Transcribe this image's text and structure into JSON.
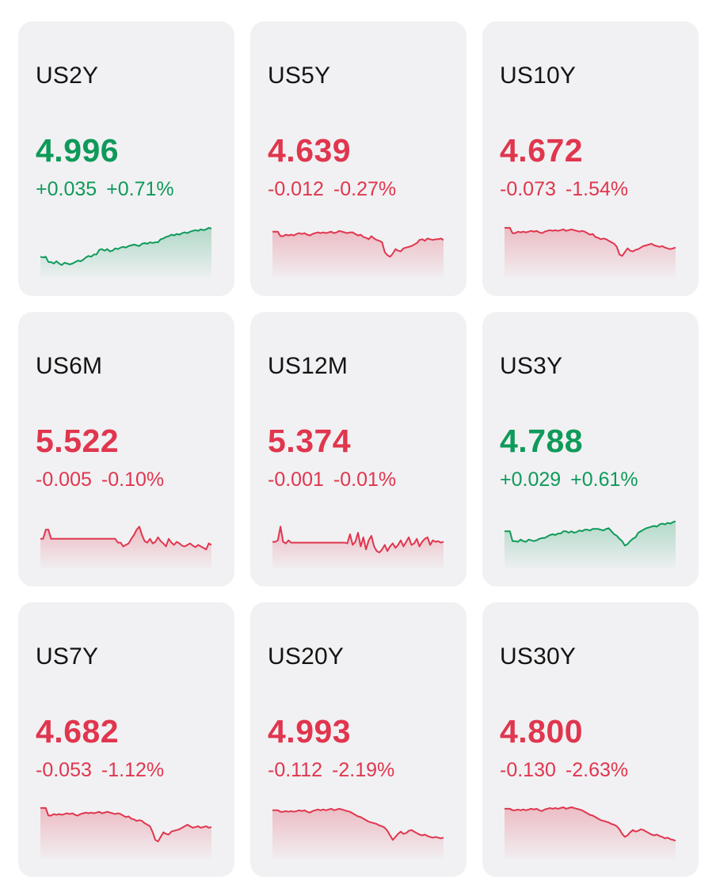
{
  "colors": {
    "up": "#0f9a5a",
    "down": "#e0364e",
    "card_bg": "#f1f1f3"
  },
  "tickers": [
    {
      "symbol": "US2Y",
      "price": "4.996",
      "change": "+0.035",
      "percent": "+0.71%",
      "direction": "up",
      "sparkline": [
        41,
        42,
        41,
        48,
        48,
        50,
        47,
        50,
        52,
        49,
        50,
        51,
        50,
        48,
        46,
        47,
        45,
        42,
        40,
        41,
        38,
        38,
        32,
        31,
        33,
        31,
        34,
        33,
        30,
        31,
        29,
        28,
        29,
        27,
        26,
        25,
        26,
        27,
        24,
        23,
        24,
        22,
        23,
        22,
        22,
        18,
        17,
        15,
        14,
        12,
        13,
        11,
        12,
        10,
        9,
        10,
        8,
        7,
        6,
        7,
        5,
        6,
        5,
        3,
        4
      ]
    },
    {
      "symbol": "US5Y",
      "price": "4.639",
      "change": "-0.012",
      "percent": "-0.27%",
      "direction": "down",
      "sparkline": [
        8,
        8,
        8,
        14,
        14,
        12,
        13,
        12,
        13,
        11,
        10,
        11,
        10,
        12,
        13,
        11,
        10,
        9,
        10,
        9,
        10,
        9,
        8,
        10,
        9,
        7,
        8,
        9,
        10,
        9,
        9,
        11,
        13,
        12,
        15,
        16,
        18,
        14,
        17,
        19,
        20,
        22,
        35,
        39,
        41,
        37,
        31,
        33,
        34,
        30,
        29,
        28,
        27,
        25,
        23,
        19,
        18,
        20,
        17,
        18,
        19,
        18,
        18,
        17,
        19
      ]
    },
    {
      "symbol": "US10Y",
      "price": "4.672",
      "change": "-0.073",
      "percent": "-1.54%",
      "direction": "down",
      "sparkline": [
        3,
        3,
        3,
        10,
        10,
        8,
        9,
        8,
        9,
        8,
        7,
        8,
        7,
        9,
        10,
        8,
        7,
        6,
        7,
        6,
        7,
        6,
        5,
        7,
        6,
        5,
        6,
        7,
        8,
        7,
        8,
        10,
        12,
        11,
        15,
        16,
        18,
        17,
        18,
        20,
        22,
        24,
        28,
        38,
        40,
        35,
        30,
        33,
        34,
        32,
        31,
        29,
        27,
        26,
        25,
        24,
        26,
        27,
        28,
        27,
        29,
        30,
        31,
        30,
        29
      ]
    },
    {
      "symbol": "US6M",
      "price": "5.522",
      "change": "-0.005",
      "percent": "-0.10%",
      "direction": "down",
      "sparkline": [
        30,
        30,
        18,
        18,
        30,
        30,
        30,
        30,
        30,
        30,
        30,
        30,
        30,
        30,
        30,
        30,
        30,
        30,
        30,
        30,
        30,
        30,
        30,
        30,
        30,
        30,
        30,
        30,
        30,
        35,
        35,
        40,
        38,
        36,
        30,
        25,
        18,
        14,
        25,
        33,
        35,
        30,
        36,
        34,
        28,
        33,
        36,
        40,
        30,
        35,
        38,
        34,
        36,
        39,
        40,
        38,
        36,
        39,
        41,
        38,
        40,
        42,
        44,
        36,
        38
      ]
    },
    {
      "symbol": "US12M",
      "price": "5.374",
      "change": "-0.001",
      "percent": "-0.01%",
      "direction": "down",
      "sparkline": [
        34,
        34,
        32,
        14,
        34,
        36,
        32,
        35,
        35,
        35,
        35,
        35,
        35,
        35,
        35,
        35,
        35,
        35,
        35,
        35,
        35,
        35,
        35,
        35,
        35,
        35,
        35,
        35,
        36,
        24,
        38,
        34,
        22,
        40,
        28,
        44,
        32,
        26,
        40,
        46,
        48,
        44,
        38,
        46,
        40,
        36,
        42,
        38,
        32,
        40,
        34,
        28,
        38,
        36,
        30,
        40,
        34,
        30,
        28,
        38,
        32,
        34,
        33,
        35,
        34
      ]
    },
    {
      "symbol": "US3Y",
      "price": "4.788",
      "change": "+0.029",
      "percent": "+0.61%",
      "direction": "up",
      "sparkline": [
        20,
        20,
        20,
        33,
        33,
        34,
        31,
        33,
        34,
        31,
        32,
        33,
        32,
        30,
        29,
        29,
        27,
        25,
        24,
        25,
        23,
        23,
        20,
        20,
        22,
        20,
        22,
        21,
        19,
        20,
        18,
        18,
        19,
        17,
        17,
        17,
        18,
        19,
        17,
        16,
        20,
        24,
        26,
        30,
        33,
        39,
        37,
        33,
        30,
        28,
        22,
        20,
        18,
        16,
        15,
        14,
        13,
        14,
        11,
        10,
        11,
        9,
        10,
        8,
        7
      ]
    },
    {
      "symbol": "US7Y",
      "price": "4.682",
      "change": "-0.053",
      "percent": "-1.12%",
      "direction": "down",
      "sparkline": [
        2,
        2,
        2,
        12,
        12,
        10,
        11,
        10,
        11,
        10,
        9,
        10,
        9,
        11,
        12,
        10,
        9,
        8,
        9,
        8,
        9,
        8,
        7,
        9,
        8,
        7,
        8,
        9,
        10,
        9,
        10,
        12,
        14,
        13,
        16,
        17,
        19,
        18,
        19,
        22,
        24,
        26,
        34,
        44,
        46,
        40,
        34,
        36,
        37,
        33,
        32,
        31,
        30,
        28,
        26,
        24,
        26,
        28,
        27,
        26,
        28,
        27,
        26,
        28,
        27
      ]
    },
    {
      "symbol": "US20Y",
      "price": "4.993",
      "change": "-0.112",
      "percent": "-2.19%",
      "direction": "down",
      "sparkline": [
        5,
        5,
        5,
        7,
        7,
        6,
        7,
        6,
        7,
        6,
        5,
        6,
        5,
        7,
        8,
        6,
        5,
        4,
        5,
        4,
        5,
        4,
        3,
        5,
        4,
        3,
        4,
        5,
        6,
        7,
        9,
        11,
        13,
        14,
        16,
        18,
        20,
        21,
        22,
        23,
        25,
        26,
        28,
        32,
        38,
        44,
        40,
        36,
        33,
        36,
        35,
        32,
        31,
        33,
        35,
        37,
        38,
        37,
        39,
        40,
        41,
        40,
        41,
        42,
        41
      ]
    },
    {
      "symbol": "US30Y",
      "price": "4.800",
      "change": "-0.130",
      "percent": "-2.63%",
      "direction": "down",
      "sparkline": [
        3,
        3,
        3,
        5,
        5,
        4,
        5,
        4,
        5,
        4,
        3,
        4,
        3,
        5,
        6,
        4,
        3,
        2,
        3,
        2,
        3,
        2,
        1,
        3,
        2,
        1,
        2,
        3,
        4,
        5,
        7,
        9,
        11,
        12,
        14,
        16,
        18,
        19,
        20,
        21,
        23,
        24,
        26,
        30,
        36,
        40,
        38,
        34,
        31,
        33,
        32,
        30,
        31,
        33,
        35,
        37,
        38,
        37,
        39,
        40,
        42,
        41,
        43,
        44,
        45
      ]
    }
  ]
}
